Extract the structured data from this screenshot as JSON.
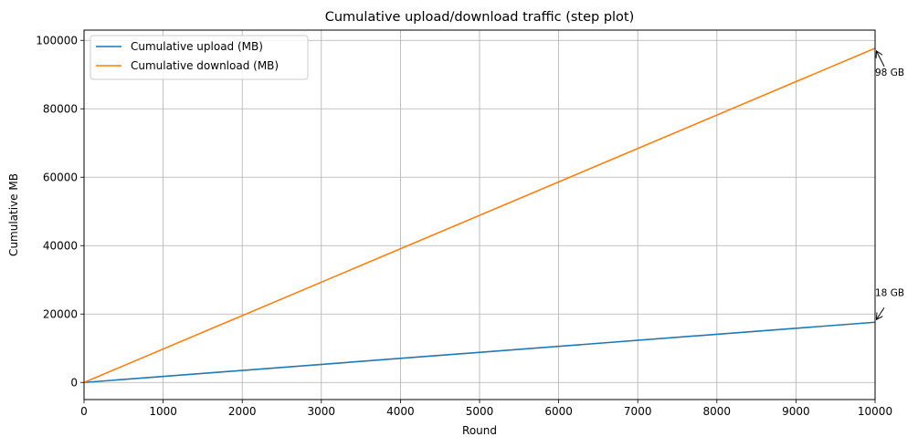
{
  "chart_data": {
    "type": "line",
    "title": "Cumulative upload/download traffic (step plot)",
    "xlabel": "Round",
    "ylabel": "Cumulative MB",
    "xlim": [
      0,
      10000
    ],
    "ylim": [
      -5000,
      103000
    ],
    "xticks": [
      0,
      1000,
      2000,
      3000,
      4000,
      5000,
      6000,
      7000,
      8000,
      9000,
      10000
    ],
    "yticks": [
      0,
      20000,
      40000,
      60000,
      80000,
      100000
    ],
    "grid": true,
    "legend_position": "upper-left",
    "series": [
      {
        "name": "Cumulative upload (MB)",
        "color": "#1f77b4",
        "x": [
          0,
          10000
        ],
        "y": [
          0,
          17600
        ]
      },
      {
        "name": "Cumulative download (MB)",
        "color": "#ff7f0e",
        "x": [
          0,
          10000
        ],
        "y": [
          0,
          97700
        ]
      }
    ],
    "annotations": [
      {
        "text": "98 GB",
        "x": 10000,
        "y": 97700
      },
      {
        "text": "18 GB",
        "x": 10000,
        "y": 17600
      }
    ]
  }
}
